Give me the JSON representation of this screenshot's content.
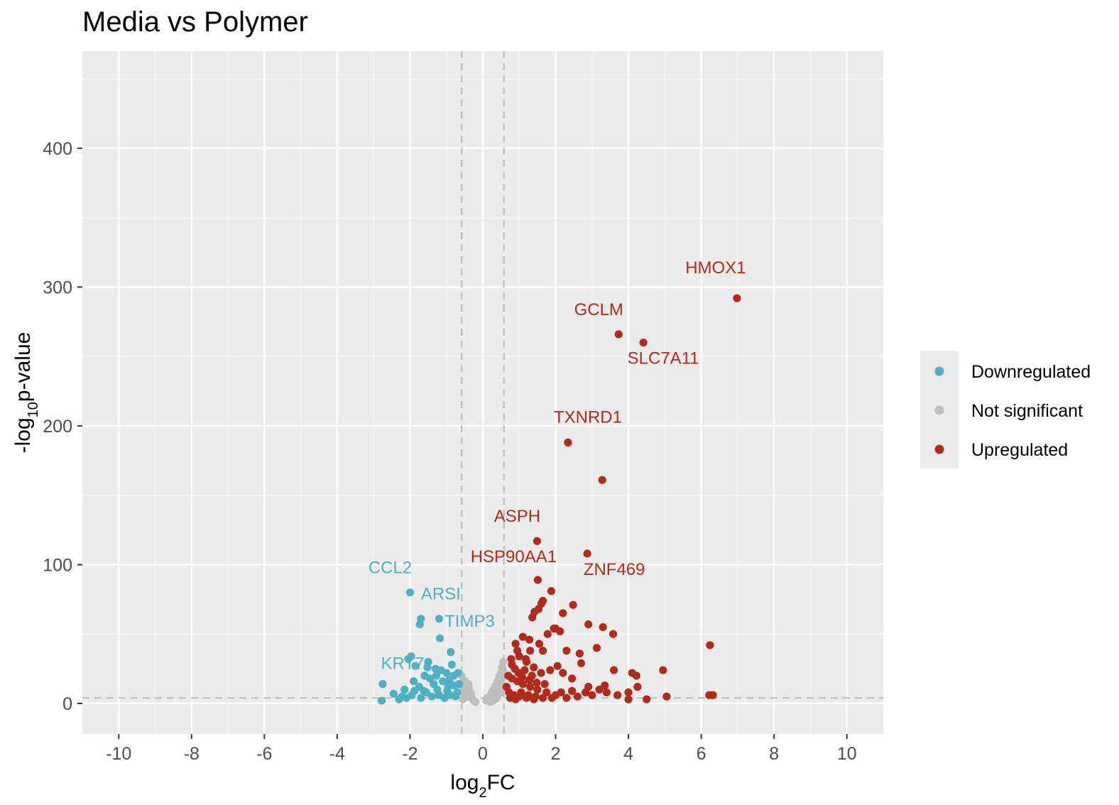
{
  "chart_data": {
    "type": "scatter",
    "title": "Media vs Polymer",
    "xlabel": "log2FC",
    "ylabel": "-log10p-value",
    "xlim": [
      -11,
      11
    ],
    "ylim": [
      -22,
      470
    ],
    "x_ticks": [
      -10,
      -8,
      -6,
      -4,
      -2,
      0,
      2,
      4,
      6,
      8,
      10
    ],
    "y_ticks": [
      0,
      100,
      200,
      300,
      400
    ],
    "thresholds": {
      "log2fc": [
        -0.58,
        0.58
      ],
      "neg_log10_p": 4
    },
    "grid": true,
    "legend_position": "right",
    "colors": {
      "Downregulated": "#4eb1c2",
      "Not significant": "#bebebe",
      "Upregulated": "#b22a1a"
    },
    "legend": [
      "Downregulated",
      "Not significant",
      "Upregulated"
    ],
    "series": [
      {
        "name": "Upregulated",
        "points": [
          [
            6.98,
            292
          ],
          [
            3.73,
            266
          ],
          [
            4.41,
            260
          ],
          [
            2.34,
            188
          ],
          [
            3.28,
            161
          ],
          [
            1.49,
            117
          ],
          [
            2.87,
            108
          ],
          [
            1.51,
            89
          ],
          [
            1.88,
            81
          ],
          [
            2.48,
            71
          ],
          [
            1.65,
            74
          ],
          [
            1.61,
            72
          ],
          [
            2.2,
            65
          ],
          [
            1.53,
            68
          ],
          [
            1.42,
            66
          ],
          [
            1.36,
            62
          ],
          [
            2.9,
            57
          ],
          [
            3.3,
            55
          ],
          [
            3.58,
            50
          ],
          [
            1.95,
            54
          ],
          [
            2.12,
            52
          ],
          [
            2.0,
            54
          ],
          [
            1.78,
            50
          ],
          [
            6.24,
            42
          ],
          [
            3.13,
            40
          ],
          [
            2.66,
            36
          ],
          [
            2.3,
            38
          ],
          [
            2.7,
            29
          ],
          [
            3.6,
            24
          ],
          [
            4.1,
            22
          ],
          [
            4.22,
            20
          ],
          [
            4.95,
            24
          ],
          [
            1.55,
            43
          ],
          [
            1.65,
            38
          ],
          [
            1.28,
            46
          ],
          [
            1.1,
            48
          ],
          [
            0.9,
            43
          ],
          [
            1.3,
            38
          ],
          [
            1.0,
            34
          ],
          [
            1.2,
            30
          ],
          [
            0.8,
            28
          ],
          [
            1.4,
            26
          ],
          [
            1.6,
            22
          ],
          [
            1.85,
            24
          ],
          [
            2.05,
            27
          ],
          [
            2.2,
            22
          ],
          [
            2.45,
            18
          ],
          [
            2.9,
            12
          ],
          [
            3.2,
            10
          ],
          [
            3.4,
            8
          ],
          [
            4.0,
            8
          ],
          [
            4.25,
            12
          ],
          [
            4.5,
            3
          ],
          [
            5.05,
            5
          ],
          [
            6.22,
            6
          ],
          [
            6.32,
            6
          ],
          [
            4.0,
            3
          ],
          [
            3.0,
            6
          ],
          [
            2.6,
            5
          ],
          [
            2.3,
            4
          ],
          [
            2.0,
            6
          ],
          [
            1.75,
            8
          ],
          [
            1.5,
            10
          ],
          [
            1.3,
            12
          ],
          [
            1.1,
            14
          ],
          [
            0.95,
            16
          ],
          [
            0.8,
            18
          ],
          [
            0.7,
            20
          ],
          [
            0.65,
            12
          ],
          [
            0.72,
            8
          ],
          [
            0.85,
            6
          ],
          [
            1.05,
            8
          ],
          [
            1.25,
            6
          ],
          [
            1.45,
            5
          ],
          [
            1.65,
            4
          ],
          [
            1.9,
            4
          ],
          [
            2.15,
            8
          ],
          [
            2.45,
            9
          ],
          [
            0.75,
            4
          ],
          [
            0.9,
            3
          ],
          [
            1.0,
            5
          ],
          [
            1.2,
            4
          ],
          [
            1.4,
            3
          ],
          [
            1.15,
            24
          ],
          [
            1.35,
            20
          ],
          [
            0.88,
            25
          ],
          [
            0.98,
            22
          ],
          [
            1.08,
            19
          ],
          [
            1.28,
            17
          ],
          [
            1.48,
            15
          ],
          [
            1.7,
            14
          ],
          [
            0.78,
            32
          ],
          [
            1.18,
            32
          ],
          [
            0.95,
            38
          ],
          [
            2.82,
            8
          ],
          [
            3.35,
            13
          ],
          [
            3.7,
            6
          ]
        ]
      },
      {
        "name": "Downregulated",
        "points": [
          [
            -2.0,
            80
          ],
          [
            -1.7,
            61
          ],
          [
            -1.73,
            57
          ],
          [
            -1.2,
            61
          ],
          [
            -1.18,
            47
          ],
          [
            -0.88,
            37
          ],
          [
            -1.97,
            34
          ],
          [
            -2.05,
            32
          ],
          [
            -1.85,
            27
          ],
          [
            -1.5,
            30
          ],
          [
            -1.3,
            25
          ],
          [
            -1.0,
            22
          ],
          [
            -0.85,
            28
          ],
          [
            -2.75,
            14
          ],
          [
            -2.78,
            2
          ],
          [
            -2.3,
            3
          ],
          [
            -2.15,
            10
          ],
          [
            -1.9,
            16
          ],
          [
            -1.75,
            12
          ],
          [
            -1.6,
            20
          ],
          [
            -1.45,
            18
          ],
          [
            -1.35,
            14
          ],
          [
            -1.25,
            10
          ],
          [
            -1.1,
            16
          ],
          [
            -0.95,
            12
          ],
          [
            -0.8,
            20
          ],
          [
            -0.7,
            8
          ],
          [
            -0.75,
            5
          ],
          [
            -0.9,
            6
          ],
          [
            -1.05,
            4
          ],
          [
            -1.2,
            6
          ],
          [
            -1.4,
            5
          ],
          [
            -1.55,
            8
          ],
          [
            -1.7,
            4
          ],
          [
            -1.95,
            6
          ],
          [
            -2.1,
            4
          ],
          [
            -2.45,
            7
          ],
          [
            -0.65,
            14
          ],
          [
            -0.68,
            22
          ],
          [
            -1.15,
            24
          ],
          [
            -1.52,
            26
          ],
          [
            -1.62,
            9
          ],
          [
            -0.78,
            13
          ],
          [
            -0.98,
            9
          ],
          [
            -1.28,
            20
          ],
          [
            -1.88,
            9
          ],
          [
            -2.22,
            5
          ],
          [
            -0.92,
            17
          ]
        ]
      },
      {
        "name": "Not significant",
        "points": [
          [
            -0.55,
            3
          ],
          [
            -0.5,
            6
          ],
          [
            -0.45,
            10
          ],
          [
            -0.4,
            14
          ],
          [
            -0.35,
            8
          ],
          [
            -0.3,
            4
          ],
          [
            -0.25,
            2
          ],
          [
            -0.48,
            16
          ],
          [
            -0.52,
            12
          ],
          [
            -0.42,
            5
          ],
          [
            -0.38,
            11
          ],
          [
            -0.32,
            7
          ],
          [
            0.1,
            2
          ],
          [
            0.15,
            3
          ],
          [
            0.2,
            5
          ],
          [
            0.25,
            8
          ],
          [
            0.3,
            10
          ],
          [
            0.35,
            13
          ],
          [
            0.4,
            16
          ],
          [
            0.45,
            19
          ],
          [
            0.5,
            22
          ],
          [
            0.55,
            24
          ],
          [
            0.52,
            18
          ],
          [
            0.48,
            12
          ],
          [
            0.42,
            6
          ],
          [
            0.38,
            4
          ],
          [
            0.32,
            3
          ],
          [
            0.28,
            2
          ],
          [
            0.56,
            30
          ],
          [
            0.53,
            26
          ],
          [
            0.5,
            8
          ],
          [
            0.46,
            15
          ],
          [
            0.2,
            1
          ],
          [
            -0.2,
            1
          ],
          [
            -0.58,
            20
          ],
          [
            -0.56,
            8
          ],
          [
            0.12,
            4
          ]
        ]
      }
    ],
    "labels": [
      {
        "text": "HMOX1",
        "x": 6.98,
        "y": 292,
        "series": "Upregulated"
      },
      {
        "text": "GCLM",
        "x": 3.73,
        "y": 266,
        "series": "Upregulated"
      },
      {
        "text": "SLC7A11",
        "x": 4.41,
        "y": 260,
        "series": "Upregulated"
      },
      {
        "text": "TXNRD1",
        "x": 2.34,
        "y": 188,
        "series": "Upregulated"
      },
      {
        "text": "ASPH",
        "x": 1.49,
        "y": 117,
        "series": "Upregulated"
      },
      {
        "text": "HSP90AA1",
        "x": 1.51,
        "y": 89,
        "series": "Upregulated"
      },
      {
        "text": "ZNF469",
        "x": 2.87,
        "y": 108,
        "series": "Upregulated"
      },
      {
        "text": "CCL2",
        "x": -2.0,
        "y": 80,
        "series": "Downregulated"
      },
      {
        "text": "ARSI",
        "x": -1.7,
        "y": 61,
        "series": "Downregulated"
      },
      {
        "text": "TIMP3",
        "x": -1.18,
        "y": 47,
        "series": "Downregulated"
      },
      {
        "text": "KRT7",
        "x": -1.97,
        "y": 34,
        "series": "Downregulated"
      }
    ]
  }
}
